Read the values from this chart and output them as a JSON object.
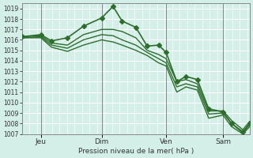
{
  "bg_color": "#d4eee8",
  "grid_color": "#ffffff",
  "line_color": "#2d6e2d",
  "ylabel_text": "Pression niveau de la mer( hPa )",
  "x_tick_labels": [
    "Jeu",
    "Dim",
    "Ven",
    "Sam"
  ],
  "x_tick_positions": [
    0.083,
    0.35,
    0.633,
    0.883
  ],
  "ylim": [
    1007,
    1019.5
  ],
  "yticks": [
    1007,
    1008,
    1009,
    1010,
    1011,
    1012,
    1013,
    1014,
    1015,
    1016,
    1017,
    1018,
    1019
  ],
  "series": [
    {
      "x": [
        0.0,
        0.083,
        0.13,
        0.2,
        0.27,
        0.35,
        0.4,
        0.44,
        0.5,
        0.55,
        0.6,
        0.633,
        0.68,
        0.72,
        0.77,
        0.82,
        0.883,
        0.92,
        0.97,
        1.0
      ],
      "y": [
        1016.3,
        1016.5,
        1015.9,
        1016.2,
        1017.3,
        1018.1,
        1019.2,
        1017.8,
        1017.2,
        1015.4,
        1015.5,
        1014.8,
        1012.0,
        1012.5,
        1012.2,
        1009.4,
        1009.1,
        1008.0,
        1007.2,
        1008.0
      ],
      "marker": "D",
      "markersize": 3,
      "linewidth": 1.2
    },
    {
      "x": [
        0.0,
        0.083,
        0.13,
        0.2,
        0.27,
        0.35,
        0.4,
        0.44,
        0.5,
        0.55,
        0.6,
        0.633,
        0.68,
        0.72,
        0.77,
        0.82,
        0.883,
        0.92,
        0.97,
        1.0
      ],
      "y": [
        1016.3,
        1016.4,
        1015.7,
        1015.5,
        1016.5,
        1017.0,
        1017.0,
        1016.8,
        1016.2,
        1015.0,
        1014.6,
        1014.2,
        1012.0,
        1012.2,
        1011.8,
        1009.2,
        1009.2,
        1008.3,
        1007.4,
        1008.2
      ],
      "marker": null,
      "markersize": 0,
      "linewidth": 1.0
    },
    {
      "x": [
        0.0,
        0.083,
        0.13,
        0.2,
        0.27,
        0.35,
        0.4,
        0.44,
        0.5,
        0.55,
        0.6,
        0.633,
        0.68,
        0.72,
        0.77,
        0.82,
        0.883,
        0.92,
        0.97,
        1.0
      ],
      "y": [
        1016.2,
        1016.3,
        1015.5,
        1015.2,
        1016.0,
        1016.5,
        1016.4,
        1016.0,
        1015.5,
        1014.8,
        1014.2,
        1013.8,
        1011.5,
        1011.8,
        1011.5,
        1008.9,
        1009.0,
        1008.0,
        1007.1,
        1007.9
      ],
      "marker": null,
      "markersize": 0,
      "linewidth": 1.0
    },
    {
      "x": [
        0.0,
        0.083,
        0.13,
        0.2,
        0.27,
        0.35,
        0.4,
        0.44,
        0.5,
        0.55,
        0.6,
        0.633,
        0.68,
        0.72,
        0.77,
        0.82,
        0.883,
        0.92,
        0.97,
        1.0
      ],
      "y": [
        1016.2,
        1016.2,
        1015.3,
        1014.9,
        1015.5,
        1016.0,
        1015.8,
        1015.5,
        1015.0,
        1014.5,
        1013.8,
        1013.5,
        1011.0,
        1011.5,
        1011.2,
        1008.5,
        1008.8,
        1007.7,
        1007.0,
        1007.7
      ],
      "marker": null,
      "markersize": 0,
      "linewidth": 1.0
    }
  ],
  "vline_positions": [
    0.083,
    0.35,
    0.633,
    0.883
  ],
  "vline_color": "#888888",
  "vline_linewidth": 0.7
}
